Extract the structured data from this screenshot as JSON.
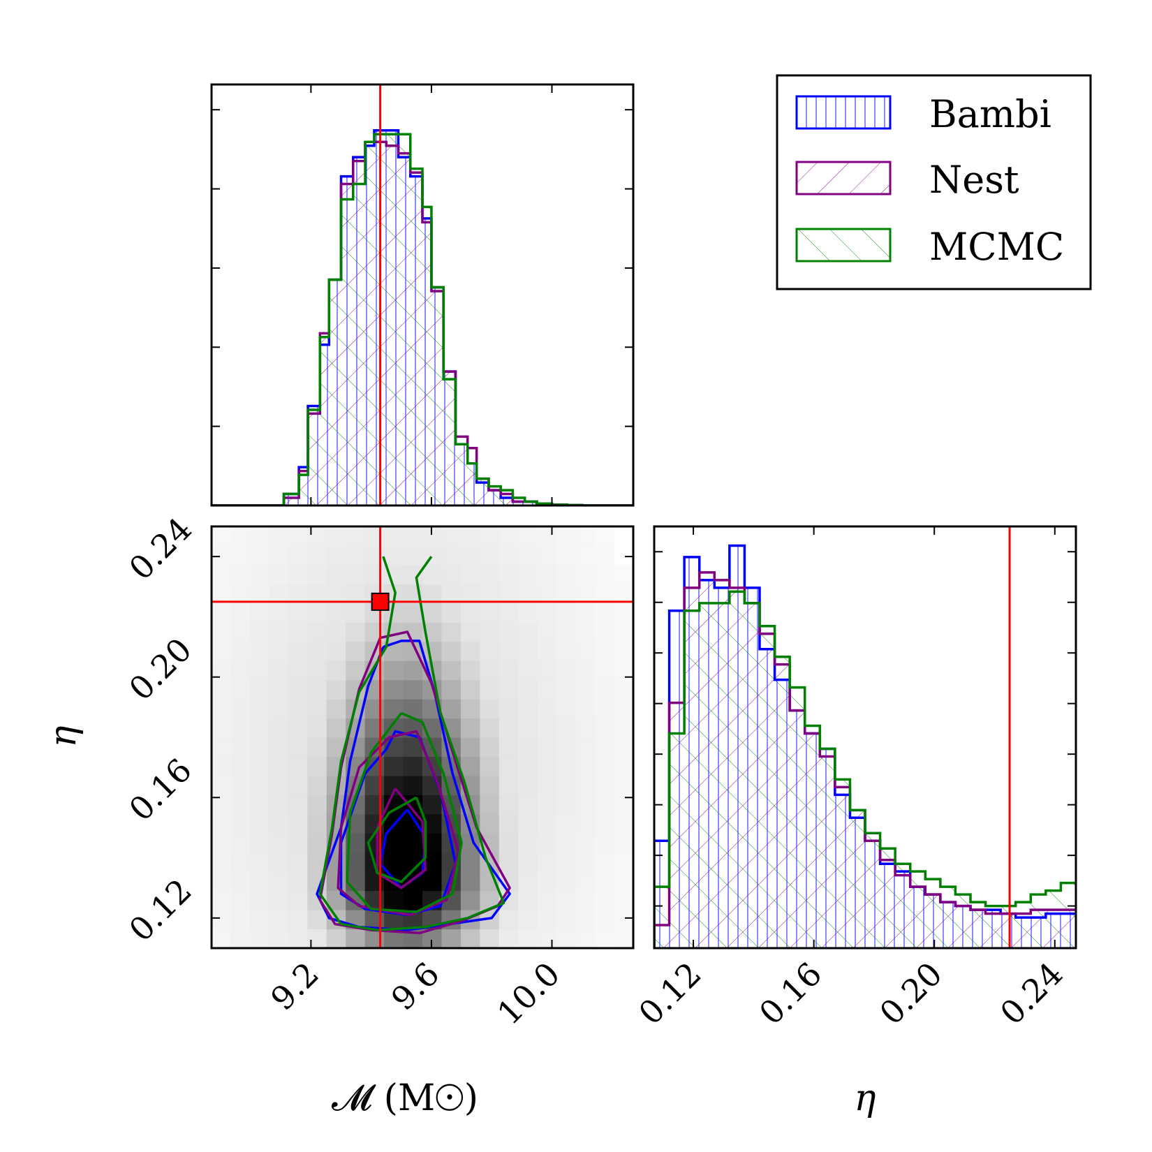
{
  "colors": {
    "Bambi": "#0000ff",
    "Nest": "#800080",
    "MCMC": "#008000",
    "truth": "#ff0000",
    "frame": "#000000"
  },
  "legend": {
    "placement": "top-right",
    "entries": [
      {
        "label": "Bambi",
        "hatch": "vertical"
      },
      {
        "label": "Nest",
        "hatch": "forward-diagonal"
      },
      {
        "label": "MCMC",
        "hatch": "back-diagonal"
      }
    ]
  },
  "axes": {
    "mc_label": "𝓜 (M☉)",
    "eta_label": "η",
    "eta_ylabel": "η",
    "mc_ticks": [
      "9.2",
      "9.6",
      "10.0"
    ],
    "eta_ticks": [
      "0.12",
      "0.16",
      "0.20",
      "0.24"
    ]
  },
  "chart_data": [
    {
      "type": "histogram",
      "panel": "chirp-mass marginal",
      "x_range": [
        8.87,
        10.27
      ],
      "x_ticks": [
        9.2,
        9.6,
        10.0
      ],
      "truth": 9.43,
      "bin_edges": [
        8.87,
        9.11,
        9.16,
        9.19,
        9.23,
        9.26,
        9.3,
        9.34,
        9.38,
        9.41,
        9.45,
        9.49,
        9.53,
        9.57,
        9.6,
        9.64,
        9.68,
        9.72,
        9.75,
        9.79,
        9.83,
        9.87,
        9.91,
        9.95,
        10.0,
        10.05,
        10.1,
        10.27
      ],
      "series": [
        {
          "name": "Bambi",
          "values": [
            0.0,
            0.03,
            0.1,
            0.26,
            0.42,
            0.59,
            0.86,
            0.91,
            0.94,
            0.98,
            0.98,
            0.91,
            0.86,
            0.75,
            0.57,
            0.35,
            0.16,
            0.11,
            0.06,
            0.04,
            0.02,
            0.01,
            0.01,
            0.005,
            0.002,
            0.001,
            0.0
          ]
        },
        {
          "name": "Nest",
          "values": [
            0.0,
            0.02,
            0.09,
            0.24,
            0.45,
            0.59,
            0.84,
            0.9,
            0.95,
            0.95,
            0.94,
            0.92,
            0.87,
            0.74,
            0.56,
            0.35,
            0.18,
            0.15,
            0.07,
            0.04,
            0.03,
            0.01,
            0.01,
            0.005,
            0.002,
            0.001,
            0.0
          ]
        },
        {
          "name": "MCMC",
          "values": [
            0.0,
            0.03,
            0.08,
            0.25,
            0.44,
            0.59,
            0.8,
            0.84,
            0.95,
            0.97,
            0.97,
            0.97,
            0.88,
            0.78,
            0.57,
            0.33,
            0.16,
            0.11,
            0.07,
            0.05,
            0.04,
            0.02,
            0.01,
            0.005,
            0.002,
            0.001,
            0.0
          ]
        }
      ]
    },
    {
      "type": "heatmap",
      "panel": "chirp-mass vs eta 2D posterior with credible contours",
      "x_range": [
        8.87,
        10.27
      ],
      "y_range": [
        0.11,
        0.25
      ],
      "x_ticks": [
        9.2,
        9.6,
        10.0
      ],
      "y_ticks": [
        0.12,
        0.16,
        0.2,
        0.24
      ],
      "truth": {
        "x": 9.43,
        "y": 0.225
      },
      "density_peak": {
        "x": 9.52,
        "y": 0.135
      },
      "contours": [
        {
          "series": "Bambi",
          "level": "outer",
          "points": [
            [
              9.44,
              0.21
            ],
            [
              9.39,
              0.197
            ],
            [
              9.33,
              0.172
            ],
            [
              9.3,
              0.15
            ],
            [
              9.22,
              0.128
            ],
            [
              9.26,
              0.12
            ],
            [
              9.36,
              0.117
            ],
            [
              9.52,
              0.116
            ],
            [
              9.66,
              0.118
            ],
            [
              9.8,
              0.12
            ],
            [
              9.86,
              0.128
            ],
            [
              9.74,
              0.145
            ],
            [
              9.67,
              0.168
            ],
            [
              9.61,
              0.195
            ],
            [
              9.56,
              0.212
            ],
            [
              9.5,
              0.212
            ],
            [
              9.44,
              0.21
            ]
          ]
        },
        {
          "series": "Bambi",
          "level": "middle",
          "points": [
            [
              9.45,
              0.176
            ],
            [
              9.38,
              0.168
            ],
            [
              9.3,
              0.145
            ],
            [
              9.3,
              0.128
            ],
            [
              9.38,
              0.123
            ],
            [
              9.52,
              0.121
            ],
            [
              9.63,
              0.124
            ],
            [
              9.68,
              0.138
            ],
            [
              9.63,
              0.162
            ],
            [
              9.56,
              0.18
            ],
            [
              9.48,
              0.182
            ],
            [
              9.45,
              0.176
            ]
          ]
        },
        {
          "series": "Bambi",
          "level": "inner",
          "points": [
            [
              9.52,
              0.156
            ],
            [
              9.45,
              0.148
            ],
            [
              9.43,
              0.138
            ],
            [
              9.5,
              0.13
            ],
            [
              9.57,
              0.135
            ],
            [
              9.58,
              0.147
            ],
            [
              9.52,
              0.156
            ]
          ]
        },
        {
          "series": "Nest",
          "level": "outer",
          "points": [
            [
              9.43,
              0.213
            ],
            [
              9.36,
              0.196
            ],
            [
              9.3,
              0.17
            ],
            [
              9.27,
              0.148
            ],
            [
              9.23,
              0.126
            ],
            [
              9.28,
              0.118
            ],
            [
              9.4,
              0.116
            ],
            [
              9.56,
              0.115
            ],
            [
              9.7,
              0.119
            ],
            [
              9.82,
              0.124
            ],
            [
              9.86,
              0.13
            ],
            [
              9.75,
              0.15
            ],
            [
              9.68,
              0.172
            ],
            [
              9.6,
              0.198
            ],
            [
              9.52,
              0.215
            ],
            [
              9.43,
              0.213
            ]
          ]
        },
        {
          "series": "Nest",
          "level": "middle",
          "points": [
            [
              9.46,
              0.18
            ],
            [
              9.36,
              0.17
            ],
            [
              9.3,
              0.15
            ],
            [
              9.29,
              0.13
            ],
            [
              9.36,
              0.124
            ],
            [
              9.53,
              0.121
            ],
            [
              9.65,
              0.126
            ],
            [
              9.69,
              0.142
            ],
            [
              9.62,
              0.165
            ],
            [
              9.55,
              0.182
            ],
            [
              9.46,
              0.18
            ]
          ]
        },
        {
          "series": "Nest",
          "level": "inner",
          "points": [
            [
              9.48,
              0.163
            ],
            [
              9.42,
              0.15
            ],
            [
              9.42,
              0.135
            ],
            [
              9.5,
              0.13
            ],
            [
              9.58,
              0.136
            ],
            [
              9.57,
              0.152
            ],
            [
              9.48,
              0.163
            ]
          ]
        },
        {
          "series": "MCMC",
          "level": "outer",
          "points": [
            [
              9.44,
              0.24
            ],
            [
              9.48,
              0.228
            ],
            [
              9.45,
              0.21
            ],
            [
              9.36,
              0.195
            ],
            [
              9.3,
              0.172
            ],
            [
              9.27,
              0.15
            ],
            [
              9.23,
              0.128
            ],
            [
              9.3,
              0.118
            ],
            [
              9.42,
              0.116
            ],
            [
              9.58,
              0.117
            ],
            [
              9.72,
              0.12
            ],
            [
              9.84,
              0.125
            ],
            [
              9.78,
              0.14
            ],
            [
              9.71,
              0.165
            ],
            [
              9.63,
              0.188
            ],
            [
              9.58,
              0.215
            ],
            [
              9.55,
              0.233
            ],
            [
              9.6,
              0.24
            ]
          ]
        },
        {
          "series": "MCMC",
          "level": "middle",
          "points": [
            [
              9.5,
              0.188
            ],
            [
              9.4,
              0.175
            ],
            [
              9.33,
              0.155
            ],
            [
              9.32,
              0.132
            ],
            [
              9.4,
              0.123
            ],
            [
              9.55,
              0.122
            ],
            [
              9.67,
              0.128
            ],
            [
              9.7,
              0.145
            ],
            [
              9.64,
              0.168
            ],
            [
              9.57,
              0.185
            ],
            [
              9.5,
              0.188
            ]
          ]
        },
        {
          "series": "MCMC",
          "level": "inner",
          "points": [
            [
              9.55,
              0.16
            ],
            [
              9.46,
              0.155
            ],
            [
              9.39,
              0.145
            ],
            [
              9.42,
              0.135
            ],
            [
              9.5,
              0.132
            ],
            [
              9.58,
              0.14
            ],
            [
              9.58,
              0.152
            ],
            [
              9.55,
              0.16
            ]
          ]
        }
      ]
    },
    {
      "type": "histogram",
      "panel": "eta marginal",
      "x_range": [
        0.107,
        0.247
      ],
      "x_ticks": [
        0.12,
        0.16,
        0.2,
        0.24
      ],
      "truth": 0.225,
      "bin_edges": [
        0.107,
        0.112,
        0.117,
        0.122,
        0.127,
        0.132,
        0.137,
        0.142,
        0.147,
        0.152,
        0.157,
        0.162,
        0.167,
        0.172,
        0.177,
        0.182,
        0.187,
        0.192,
        0.197,
        0.202,
        0.207,
        0.212,
        0.217,
        0.222,
        0.227,
        0.232,
        0.237,
        0.242,
        0.247
      ],
      "series": [
        {
          "name": "Bambi",
          "values": [
            0.28,
            0.88,
            1.02,
            0.96,
            0.94,
            1.05,
            0.94,
            0.78,
            0.7,
            0.62,
            0.56,
            0.52,
            0.4,
            0.34,
            0.28,
            0.22,
            0.2,
            0.16,
            0.14,
            0.12,
            0.11,
            0.1,
            0.1,
            0.09,
            0.08,
            0.08,
            0.09,
            0.09
          ]
        },
        {
          "name": "Nest",
          "values": [
            0.06,
            0.64,
            0.94,
            0.98,
            0.96,
            0.94,
            0.9,
            0.82,
            0.74,
            0.62,
            0.56,
            0.5,
            0.42,
            0.36,
            0.28,
            0.23,
            0.19,
            0.16,
            0.14,
            0.12,
            0.11,
            0.1,
            0.09,
            0.09,
            0.09,
            0.1,
            0.1,
            0.1
          ]
        },
        {
          "name": "MCMC",
          "values": [
            0.16,
            0.56,
            0.88,
            0.9,
            0.9,
            0.93,
            0.9,
            0.84,
            0.76,
            0.68,
            0.58,
            0.52,
            0.44,
            0.36,
            0.3,
            0.26,
            0.22,
            0.2,
            0.18,
            0.16,
            0.14,
            0.12,
            0.11,
            0.11,
            0.12,
            0.14,
            0.15,
            0.17
          ]
        }
      ]
    }
  ]
}
